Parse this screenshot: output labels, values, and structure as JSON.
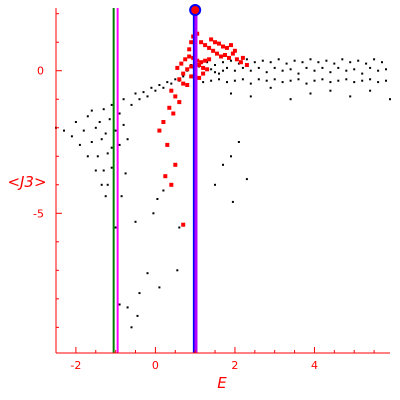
{
  "chart_data": {
    "type": "scatter",
    "title": "",
    "xlabel": "E",
    "ylabel": "<J3>",
    "xlim": [
      -2.5,
      5.9
    ],
    "ylim": [
      -9.9,
      2.2
    ],
    "x_ticks": [
      -2,
      0,
      2,
      4
    ],
    "y_ticks": [
      0,
      -5
    ],
    "grid": false,
    "colors": {
      "axis": "#ff0000",
      "black_points": "#000000",
      "red_points": "#ff0000",
      "green_line": "#008000",
      "magenta_line": "#ff00ff",
      "blue_line": "#0000ff",
      "purple_line": "#b000ff"
    },
    "vertical_lines": [
      {
        "x": -1.05,
        "color": "#008000"
      },
      {
        "x": -0.95,
        "color": "#ff00ff"
      },
      {
        "x": 0.98,
        "color": "#0000ff"
      },
      {
        "x": 1.02,
        "color": "#b000ff"
      }
    ],
    "series": [
      {
        "color": "#000000",
        "points": [
          [
            -2.5,
            -2.0
          ],
          [
            -2.3,
            -2.1
          ],
          [
            -2.1,
            -2.3
          ],
          [
            -1.9,
            -2.6
          ],
          [
            -1.7,
            -3.0
          ],
          [
            -1.5,
            -3.5
          ],
          [
            -1.35,
            -4.0
          ],
          [
            -1.25,
            -4.4
          ],
          [
            -2.0,
            -1.8
          ],
          [
            -1.8,
            -2.1
          ],
          [
            -1.6,
            -2.5
          ],
          [
            -1.45,
            -3.0
          ],
          [
            -1.3,
            -3.5
          ],
          [
            -1.2,
            -4.0
          ],
          [
            -1.7,
            -1.6
          ],
          [
            -1.5,
            -2.0
          ],
          [
            -1.35,
            -2.4
          ],
          [
            -1.2,
            -2.9
          ],
          [
            -1.1,
            -3.4
          ],
          [
            -1.6,
            -1.4
          ],
          [
            -1.4,
            -1.8
          ],
          [
            -1.25,
            -2.2
          ],
          [
            -1.1,
            -2.7
          ],
          [
            -1.3,
            -1.35
          ],
          [
            -1.15,
            -1.7
          ],
          [
            -1.0,
            -2.1
          ],
          [
            -0.9,
            -2.6
          ],
          [
            -1.1,
            -1.2
          ],
          [
            -0.9,
            -1.5
          ],
          [
            -0.8,
            -1.9
          ],
          [
            -0.7,
            -2.4
          ],
          [
            -0.75,
            -3.6
          ],
          [
            -0.85,
            -4.4
          ],
          [
            -1.0,
            -5.5
          ],
          [
            -0.8,
            -1.0
          ],
          [
            -0.6,
            -1.2
          ],
          [
            -0.4,
            -1.0
          ],
          [
            -0.2,
            -0.9
          ],
          [
            0.0,
            -0.7
          ],
          [
            0.2,
            -0.6
          ],
          [
            0.4,
            -0.45
          ],
          [
            0.6,
            -0.35
          ],
          [
            -0.5,
            -0.8
          ],
          [
            -0.3,
            -0.75
          ],
          [
            -0.1,
            -0.6
          ],
          [
            0.1,
            -0.5
          ],
          [
            0.3,
            -0.4
          ],
          [
            0.5,
            -0.3
          ],
          [
            0.7,
            -0.2
          ],
          [
            0.8,
            0.0
          ],
          [
            0.9,
            0.2
          ],
          [
            1.1,
            0.15
          ],
          [
            1.3,
            0.05
          ],
          [
            1.5,
            -0.05
          ],
          [
            1.7,
            0.0
          ],
          [
            1.2,
            -0.4
          ],
          [
            1.4,
            -0.35
          ],
          [
            1.6,
            -0.3
          ],
          [
            1.8,
            -0.4
          ],
          [
            2.0,
            -0.35
          ],
          [
            2.2,
            -0.3
          ],
          [
            2.4,
            -0.45
          ],
          [
            2.6,
            -0.3
          ],
          [
            2.8,
            -0.35
          ],
          [
            3.0,
            -0.3
          ],
          [
            3.2,
            -0.4
          ],
          [
            3.4,
            -0.35
          ],
          [
            3.6,
            -0.3
          ],
          [
            3.8,
            -0.45
          ],
          [
            4.0,
            -0.35
          ],
          [
            4.2,
            -0.3
          ],
          [
            4.4,
            -0.4
          ],
          [
            4.6,
            -0.35
          ],
          [
            4.8,
            -0.3
          ],
          [
            5.0,
            -0.4
          ],
          [
            5.2,
            -0.35
          ],
          [
            5.4,
            -0.3
          ],
          [
            5.6,
            -0.4
          ],
          [
            5.8,
            -0.35
          ],
          [
            1.3,
            0.3
          ],
          [
            1.5,
            0.2
          ],
          [
            1.7,
            0.3
          ],
          [
            1.9,
            0.35
          ],
          [
            2.1,
            0.25
          ],
          [
            2.3,
            0.4
          ],
          [
            2.5,
            0.3
          ],
          [
            2.7,
            0.35
          ],
          [
            2.9,
            0.3
          ],
          [
            3.1,
            0.4
          ],
          [
            3.3,
            0.25
          ],
          [
            3.5,
            0.35
          ],
          [
            3.7,
            0.3
          ],
          [
            3.9,
            0.4
          ],
          [
            4.1,
            0.3
          ],
          [
            4.3,
            0.35
          ],
          [
            4.5,
            0.25
          ],
          [
            4.7,
            0.4
          ],
          [
            4.9,
            0.3
          ],
          [
            5.1,
            0.35
          ],
          [
            5.3,
            0.25
          ],
          [
            5.5,
            0.4
          ],
          [
            5.7,
            0.3
          ],
          [
            1.4,
            0.05
          ],
          [
            1.6,
            -0.1
          ],
          [
            1.8,
            0.1
          ],
          [
            2.0,
            0.0
          ],
          [
            2.2,
            0.1
          ],
          [
            2.4,
            0.0
          ],
          [
            2.6,
            0.1
          ],
          [
            2.8,
            -0.05
          ],
          [
            3.0,
            0.1
          ],
          [
            3.2,
            0.0
          ],
          [
            3.4,
            0.05
          ],
          [
            3.6,
            -0.1
          ],
          [
            3.8,
            0.1
          ],
          [
            4.0,
            0.0
          ],
          [
            4.2,
            0.1
          ],
          [
            4.4,
            -0.05
          ],
          [
            4.6,
            0.1
          ],
          [
            4.8,
            0.0
          ],
          [
            5.0,
            0.05
          ],
          [
            5.2,
            -0.1
          ],
          [
            5.4,
            0.1
          ],
          [
            5.6,
            0.0
          ],
          [
            5.8,
            0.05
          ],
          [
            1.9,
            -0.8
          ],
          [
            2.4,
            -0.9
          ],
          [
            2.9,
            -0.6
          ],
          [
            3.4,
            -1.0
          ],
          [
            3.9,
            -0.8
          ],
          [
            4.4,
            -0.7
          ],
          [
            4.9,
            -0.9
          ],
          [
            5.4,
            -0.7
          ],
          [
            5.9,
            -1.0
          ],
          [
            2.1,
            -2.5
          ],
          [
            1.9,
            -3.0
          ],
          [
            2.3,
            -3.8
          ],
          [
            1.7,
            -3.3
          ],
          [
            1.5,
            -4.0
          ],
          [
            1.95,
            -4.6
          ],
          [
            0.2,
            -4.2
          ],
          [
            0.05,
            -4.5
          ],
          [
            -0.05,
            -5.0
          ],
          [
            -0.5,
            -5.3
          ],
          [
            0.6,
            -5.5
          ],
          [
            0.55,
            -7.0
          ],
          [
            0.1,
            -7.6
          ],
          [
            -0.2,
            -7.1
          ],
          [
            -0.4,
            -7.8
          ],
          [
            -0.7,
            -8.3
          ],
          [
            -0.45,
            -8.6
          ],
          [
            -0.9,
            -8.2
          ],
          [
            -0.6,
            -9.0
          ]
        ]
      },
      {
        "color": "#ff0000",
        "points": [
          [
            0.65,
            0.25
          ],
          [
            0.75,
            0.4
          ],
          [
            0.85,
            0.5
          ],
          [
            0.95,
            0.45
          ],
          [
            1.05,
            0.35
          ],
          [
            1.15,
            0.3
          ],
          [
            1.25,
            0.35
          ],
          [
            1.35,
            0.4
          ],
          [
            0.55,
            0.1
          ],
          [
            0.7,
            -0.1
          ],
          [
            0.8,
            0.05
          ],
          [
            0.9,
            0.15
          ],
          [
            1.0,
            0.1
          ],
          [
            1.1,
            0.2
          ],
          [
            1.2,
            0.1
          ],
          [
            1.3,
            0.05
          ],
          [
            0.6,
            -0.3
          ],
          [
            0.7,
            -0.45
          ],
          [
            0.8,
            -0.5
          ],
          [
            0.9,
            -0.2
          ],
          [
            1.0,
            -0.35
          ],
          [
            1.1,
            -0.25
          ],
          [
            1.2,
            -0.1
          ],
          [
            0.4,
            -0.7
          ],
          [
            0.5,
            -0.9
          ],
          [
            0.6,
            -1.1
          ],
          [
            0.35,
            -1.3
          ],
          [
            0.45,
            -1.5
          ],
          [
            0.2,
            -1.8
          ],
          [
            0.1,
            -2.1
          ],
          [
            0.3,
            -2.6
          ],
          [
            0.5,
            -3.3
          ],
          [
            0.25,
            -3.7
          ],
          [
            0.4,
            -4.0
          ],
          [
            0.7,
            -5.4
          ],
          [
            0.85,
            0.75
          ],
          [
            0.9,
            1.0
          ],
          [
            0.95,
            1.2
          ],
          [
            1.05,
            1.3
          ],
          [
            1.15,
            1.0
          ],
          [
            1.25,
            0.9
          ],
          [
            1.35,
            0.8
          ],
          [
            1.45,
            0.7
          ],
          [
            1.55,
            0.6
          ],
          [
            1.65,
            0.5
          ],
          [
            1.75,
            0.55
          ],
          [
            1.85,
            0.45
          ],
          [
            1.95,
            0.6
          ],
          [
            2.05,
            0.4
          ],
          [
            2.15,
            0.3
          ],
          [
            2.2,
            0.45
          ],
          [
            2.3,
            0.2
          ],
          [
            1.6,
            0.95
          ],
          [
            1.7,
            0.85
          ],
          [
            1.8,
            0.8
          ],
          [
            1.5,
            1.0
          ],
          [
            1.4,
            1.1
          ],
          [
            1.9,
            0.9
          ],
          [
            2.0,
            0.7
          ]
        ]
      }
    ]
  }
}
